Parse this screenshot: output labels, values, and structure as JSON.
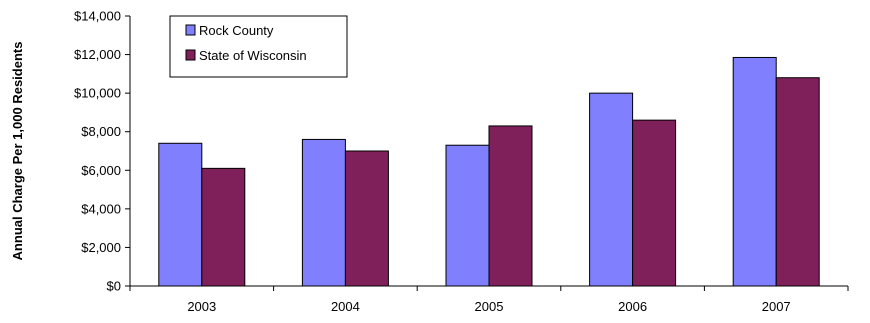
{
  "chart_data": {
    "type": "bar",
    "title": "",
    "xlabel": "",
    "ylabel": "Annual Charge Per 1,000 Residents",
    "categories": [
      "2003",
      "2004",
      "2005",
      "2006",
      "2007"
    ],
    "series": [
      {
        "name": "Rock County",
        "color": "#8080ff",
        "values": [
          7400,
          7600,
          7300,
          10000,
          11850
        ]
      },
      {
        "name": "State of Wisconsin",
        "color": "#80205a",
        "values": [
          6100,
          7000,
          8300,
          8600,
          10800
        ]
      }
    ],
    "ylim": [
      0,
      14000
    ],
    "yticks": [
      0,
      2000,
      4000,
      6000,
      8000,
      10000,
      12000,
      14000
    ],
    "ytick_labels": [
      "$0",
      "$2,000",
      "$4,000",
      "$6,000",
      "$8,000",
      "$10,000",
      "$12,000",
      "$14,000"
    ],
    "grid": false,
    "legend_position": "top-left"
  }
}
